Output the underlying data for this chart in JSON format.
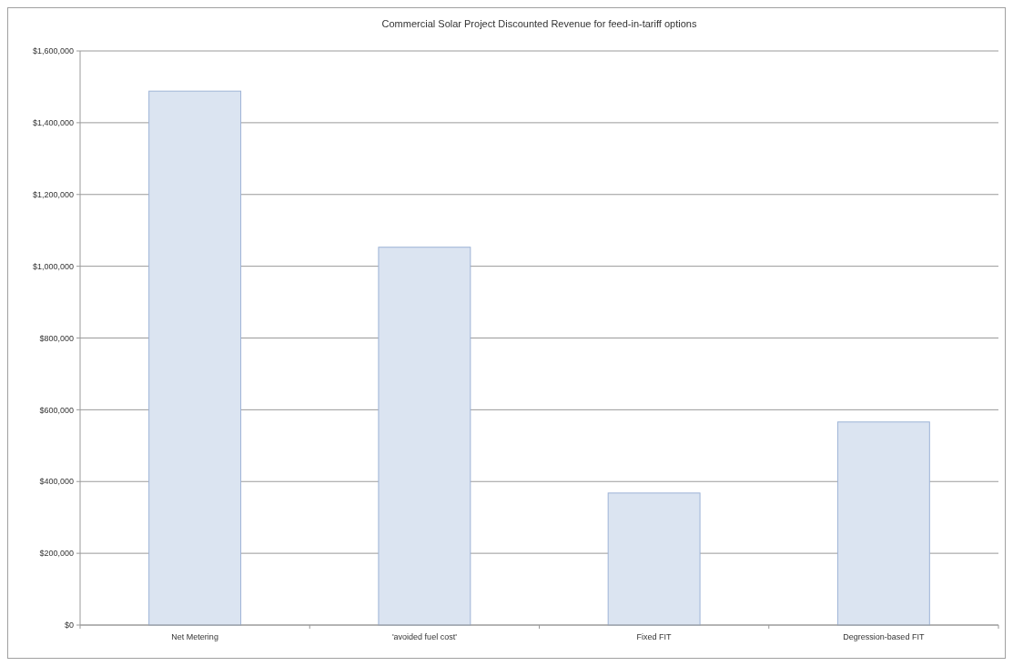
{
  "chart_data": {
    "type": "bar",
    "title": "Commercial Solar Project Discounted Revenue for feed-in-tariff options",
    "categories": [
      "Net Metering",
      "'avoided fuel cost'",
      "Fixed FIT",
      "Degression-based FIT"
    ],
    "values": [
      1488000,
      1053000,
      368000,
      566000
    ],
    "color": "#dbe4f1",
    "ylim": [
      0,
      1600000
    ],
    "yticks": [
      {
        "value": 0,
        "label": "$0"
      },
      {
        "value": 200000,
        "label": "$200,000"
      },
      {
        "value": 400000,
        "label": "$400,000"
      },
      {
        "value": 600000,
        "label": "$600,000"
      },
      {
        "value": 800000,
        "label": "$800,000"
      },
      {
        "value": 1000000,
        "label": "$1,000,000"
      },
      {
        "value": 1200000,
        "label": "$1,200,000"
      },
      {
        "value": 1400000,
        "label": "$1,400,000"
      },
      {
        "value": 1600000,
        "label": "$1,600,000"
      }
    ],
    "grid": "y"
  }
}
